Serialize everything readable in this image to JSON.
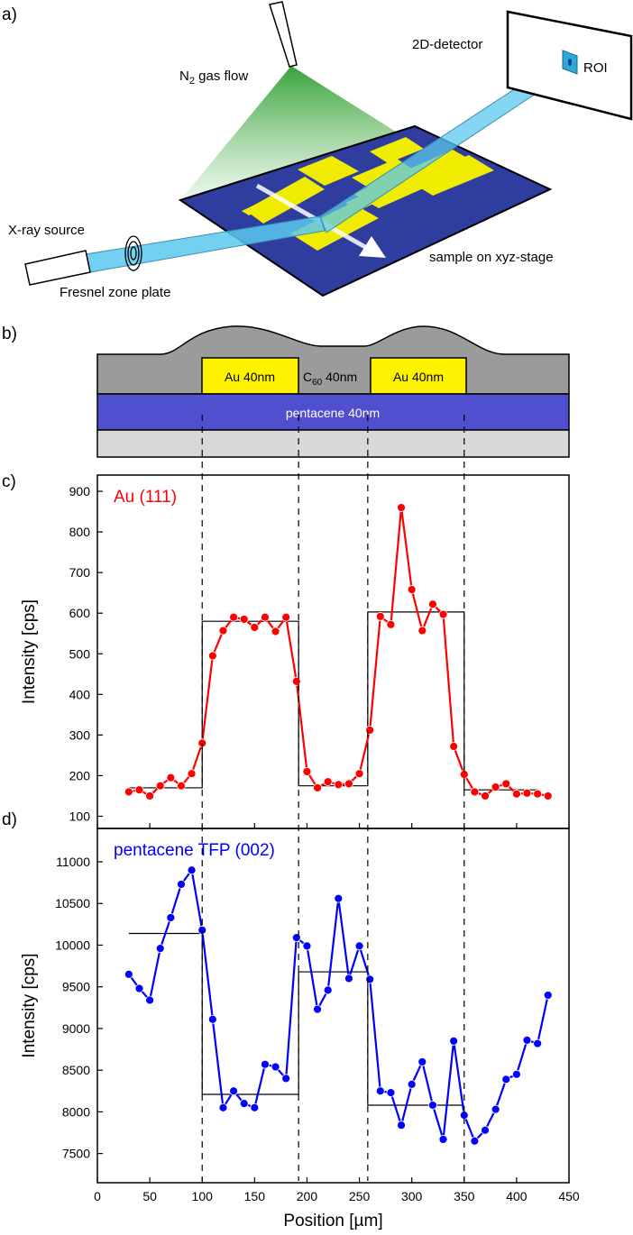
{
  "panel_labels": {
    "a": "a)",
    "b": "b)",
    "c": "c)",
    "d": "d)"
  },
  "schematic": {
    "gas_label_prefix": "N",
    "gas_label_sub": "2",
    "gas_label_suffix": " gas flow",
    "detector_label": "2D-detector",
    "roi_label": "ROI",
    "source_label": "X-ray source",
    "zone_plate_label": "Fresnel zone plate",
    "sample_label": "sample on xyz-stage",
    "colors": {
      "substrate": "#2e3d9e",
      "electrode": "#f0ec00",
      "beam": "#5bc8ee",
      "gas": "#3aa83a"
    }
  },
  "cross_section": {
    "au_left": "Au 40nm",
    "au_right": "Au 40nm",
    "c60_prefix": "C",
    "c60_sub": "60",
    "c60_suffix": " 40nm",
    "pentacene": "pentacene 40nm",
    "colors": {
      "c60": "#9b9b9b",
      "au": "#fff200",
      "pentacene": "#4f4fcf",
      "substrate": "#d8d8d8"
    }
  },
  "chart_data": [
    {
      "id": "c",
      "type": "line",
      "title": "Au (111)",
      "xlabel": "Position [µm]",
      "ylabel": "Intensity [cps]",
      "xlim": [
        0,
        450
      ],
      "ylim": [
        70,
        940
      ],
      "yticks": [
        100,
        200,
        300,
        400,
        500,
        600,
        700,
        800,
        900
      ],
      "color": "#ff0000",
      "series": [
        {
          "name": "Au (111)",
          "x": [
            30,
            40,
            50,
            60,
            70,
            80,
            90,
            100,
            110,
            120,
            130,
            140,
            150,
            160,
            170,
            180,
            190,
            200,
            210,
            220,
            230,
            240,
            250,
            260,
            270,
            280,
            290,
            300,
            310,
            320,
            330,
            340,
            350,
            360,
            370,
            380,
            390,
            400,
            410,
            420,
            430
          ],
          "y": [
            160,
            165,
            150,
            175,
            195,
            175,
            205,
            280,
            495,
            557,
            590,
            585,
            565,
            590,
            555,
            590,
            432,
            210,
            170,
            185,
            178,
            180,
            205,
            312,
            592,
            572,
            860,
            658,
            557,
            622,
            597,
            272,
            203,
            160,
            150,
            172,
            180,
            155,
            157,
            155,
            150
          ]
        }
      ],
      "step_fit": [
        [
          30,
          170
        ],
        [
          100,
          170
        ],
        [
          100,
          580
        ],
        [
          192,
          580
        ],
        [
          192,
          175
        ],
        [
          258,
          175
        ],
        [
          258,
          603
        ],
        [
          350,
          603
        ],
        [
          350,
          165
        ],
        [
          420,
          165
        ]
      ]
    },
    {
      "id": "d",
      "type": "line",
      "title": "pentacene TFP (002)",
      "xlabel": "Position [µm]",
      "ylabel": "Intensity [cps]",
      "xlim": [
        0,
        450
      ],
      "ylim": [
        7150,
        11400
      ],
      "xticks": [
        0,
        50,
        100,
        150,
        200,
        250,
        300,
        350,
        400,
        450
      ],
      "yticks": [
        7500,
        8000,
        8500,
        9000,
        9500,
        10000,
        10500,
        11000
      ],
      "color": "#0000ff",
      "series": [
        {
          "name": "pentacene TFP (002)",
          "x": [
            30,
            40,
            50,
            60,
            70,
            80,
            90,
            100,
            110,
            120,
            130,
            140,
            150,
            160,
            170,
            180,
            190,
            200,
            210,
            220,
            230,
            240,
            250,
            260,
            270,
            280,
            290,
            300,
            310,
            320,
            330,
            340,
            350,
            360,
            370,
            380,
            390,
            400,
            410,
            420,
            430
          ],
          "y": [
            9650,
            9480,
            9340,
            9960,
            10330,
            10730,
            10900,
            10180,
            9110,
            8050,
            8250,
            8100,
            8050,
            8570,
            8540,
            8400,
            10090,
            9990,
            9230,
            9460,
            10560,
            9600,
            9990,
            9590,
            8250,
            8230,
            7840,
            8330,
            8600,
            8080,
            7670,
            8850,
            7960,
            7650,
            7780,
            8030,
            8390,
            8450,
            8860,
            8820,
            9400
          ]
        }
      ],
      "step_fit": [
        [
          30,
          10140
        ],
        [
          100,
          10140
        ],
        [
          100,
          8210
        ],
        [
          192,
          8210
        ],
        [
          192,
          9680
        ],
        [
          258,
          9680
        ],
        [
          258,
          8080
        ],
        [
          350,
          8080
        ],
        [
          350,
          8080
        ]
      ]
    }
  ],
  "divider_positions": [
    100,
    192,
    258,
    350
  ]
}
